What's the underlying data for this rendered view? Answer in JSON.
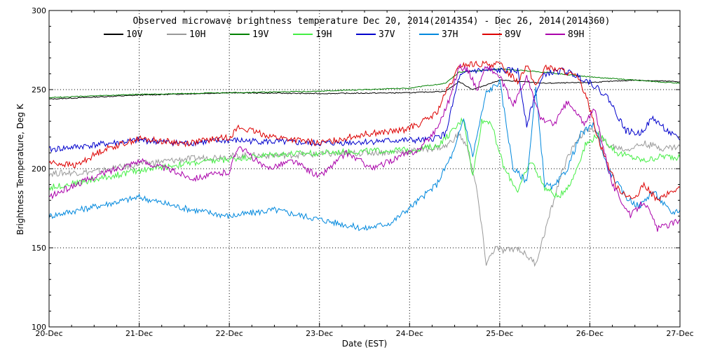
{
  "chart_data": {
    "type": "line",
    "title": "Observed microwave brightness temperature Dec 20, 2014(2014354) - Dec 26, 2014(2014360)",
    "xlabel": "Date (EST)",
    "ylabel": "Brightness Temperature, Deg K",
    "x_tick_labels": [
      "20-Dec",
      "21-Dec",
      "22-Dec",
      "23-Dec",
      "24-Dec",
      "25-Dec",
      "26-Dec",
      "27-Dec"
    ],
    "y_tick_labels": [
      "100",
      "150",
      "200",
      "250",
      "300"
    ],
    "ylim": [
      100,
      300
    ],
    "xlim": [
      0,
      7
    ],
    "grid": true,
    "legend_placement": "top",
    "series": [
      {
        "name": "10V",
        "color": "#000000",
        "x": [
          0,
          1,
          2,
          3,
          4,
          4.4,
          4.55,
          4.7,
          5,
          5.5,
          6,
          6.5,
          7
        ],
        "y": [
          244,
          246.5,
          248,
          247.5,
          248,
          249,
          255,
          250,
          256,
          254,
          254.5,
          256,
          255
        ]
      },
      {
        "name": "10H",
        "color": "#999999",
        "x": [
          0,
          0.5,
          1,
          1.5,
          2,
          3,
          3.5,
          4,
          4.4,
          4.55,
          4.65,
          4.75,
          4.85,
          4.95,
          5.05,
          5.2,
          5.4,
          5.55,
          5.7,
          5.85,
          6,
          6.2,
          6.4,
          6.6,
          6.8,
          7
        ],
        "y": [
          197,
          198,
          203,
          206,
          208,
          209,
          210,
          211,
          214,
          222,
          212,
          185,
          140,
          150,
          148,
          150,
          140,
          170,
          200,
          218,
          226,
          215,
          212,
          216,
          213,
          214
        ]
      },
      {
        "name": "19V",
        "color": "#008000",
        "x": [
          0,
          1,
          2,
          3,
          4,
          4.4,
          4.55,
          5,
          5.5,
          6,
          6.5,
          7
        ],
        "y": [
          245,
          247,
          248,
          249,
          251,
          254,
          261,
          263,
          261,
          258,
          256,
          254
        ]
      },
      {
        "name": "19H",
        "color": "#44ee44",
        "x": [
          0,
          0.5,
          1,
          1.5,
          2,
          2.5,
          3,
          3.5,
          4,
          4.3,
          4.5,
          4.6,
          4.7,
          4.8,
          4.9,
          5.05,
          5.2,
          5.35,
          5.5,
          5.65,
          5.8,
          5.95,
          6.1,
          6.3,
          6.6,
          6.8,
          7
        ],
        "y": [
          188,
          193,
          199,
          203,
          206,
          209,
          210,
          211,
          212,
          214,
          225,
          232,
          195,
          230,
          230,
          200,
          186,
          205,
          188,
          182,
          192,
          215,
          222,
          210,
          205,
          208,
          207
        ]
      },
      {
        "name": "37V",
        "color": "#0000cc",
        "x": [
          0,
          0.5,
          1,
          1.5,
          2,
          2.5,
          3,
          3.5,
          3.9,
          4.2,
          4.4,
          4.55,
          4.7,
          4.85,
          5,
          5.2,
          5.3,
          5.4,
          5.5,
          5.7,
          5.8,
          6,
          6.2,
          6.4,
          6.55,
          6.7,
          6.9,
          7
        ],
        "y": [
          212,
          215,
          218,
          216,
          218,
          217,
          216,
          217,
          218,
          218,
          222,
          258,
          262,
          262,
          262,
          262,
          228,
          248,
          260,
          262,
          260,
          255,
          245,
          224,
          222,
          232,
          222,
          218
        ]
      },
      {
        "name": "37H",
        "color": "#0088dd",
        "x": [
          0,
          0.5,
          1,
          1.5,
          2,
          2.5,
          3,
          3.5,
          3.8,
          4.1,
          4.3,
          4.5,
          4.6,
          4.7,
          4.85,
          5,
          5.15,
          5.3,
          5.4,
          5.5,
          5.6,
          5.75,
          5.9,
          6.05,
          6.2,
          6.4,
          6.55,
          6.7,
          6.9,
          7
        ],
        "y": [
          170,
          176,
          182,
          175,
          170,
          174,
          168,
          162,
          166,
          180,
          190,
          212,
          232,
          208,
          248,
          255,
          200,
          192,
          250,
          190,
          188,
          200,
          222,
          228,
          200,
          182,
          176,
          186,
          172,
          174
        ]
      },
      {
        "name": "89V",
        "color": "#dd0000",
        "x": [
          0,
          0.3,
          0.6,
          1,
          1.5,
          2,
          2.1,
          2.5,
          3,
          3.5,
          3.9,
          4.1,
          4.3,
          4.4,
          4.5,
          4.55,
          4.7,
          5,
          5.2,
          5.3,
          5.4,
          5.5,
          5.7,
          5.85,
          5.95,
          6.1,
          6.3,
          6.5,
          6.6,
          6.75,
          6.9,
          7
        ],
        "y": [
          204,
          202,
          212,
          219,
          216,
          220,
          226,
          220,
          216,
          222,
          224,
          228,
          235,
          248,
          258,
          265,
          266,
          266,
          255,
          266,
          252,
          264,
          262,
          258,
          248,
          218,
          188,
          180,
          190,
          180,
          185,
          188
        ]
      },
      {
        "name": "89H",
        "color": "#aa00aa",
        "x": [
          0,
          0.3,
          0.6,
          1,
          1.3,
          1.6,
          2,
          2.1,
          2.4,
          2.7,
          3,
          3.3,
          3.6,
          3.9,
          4.1,
          4.3,
          4.45,
          4.55,
          4.65,
          4.75,
          4.85,
          5,
          5.15,
          5.3,
          5.45,
          5.6,
          5.75,
          5.85,
          5.95,
          6.05,
          6.25,
          6.45,
          6.6,
          6.75,
          6.9,
          7
        ],
        "y": [
          182,
          190,
          197,
          205,
          200,
          194,
          198,
          215,
          200,
          205,
          195,
          210,
          200,
          208,
          212,
          225,
          245,
          265,
          262,
          250,
          265,
          258,
          240,
          258,
          232,
          228,
          242,
          235,
          228,
          238,
          190,
          170,
          180,
          162,
          165,
          168
        ]
      }
    ]
  }
}
